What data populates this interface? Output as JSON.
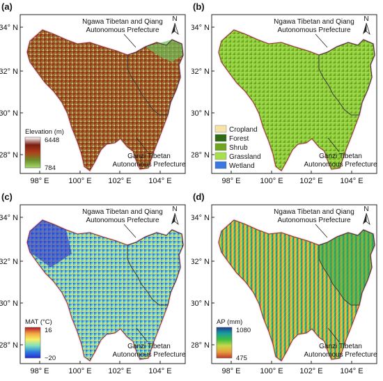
{
  "figure": {
    "panels": [
      {
        "label": "(a)",
        "y_ticks": [
          "34° N",
          "32° N",
          "30° N",
          "28° N"
        ],
        "x_ticks": [
          "98° E",
          "100° E",
          "102° E",
          "104° E"
        ],
        "north": "N",
        "annotation_ngawa": [
          "Ngawa Tibetan and Qiang",
          "Autonomous Prefecture"
        ],
        "annotation_ganzi": [
          "Ganzi Tibetan",
          "Autonomous Prefecture"
        ],
        "legend": {
          "title": "Elevation (m)",
          "max": "6448",
          "min": "784",
          "colors": [
            "#ffffff",
            "#7a1e10",
            "#b0401b",
            "#6b8f2a",
            "#a6d96a"
          ]
        }
      },
      {
        "label": "(b)",
        "y_ticks": [
          "34° N",
          "32° N",
          "30° N",
          "28° N"
        ],
        "x_ticks": [
          "98° E",
          "100° E",
          "102° E",
          "104° E"
        ],
        "north": "N",
        "annotation_ngawa": [
          "Ngawa Tibetan and Qiang",
          "Autonomous Prefecture"
        ],
        "annotation_ganzi": [
          "Ganzi Tibetan",
          "Autonomous Prefecture"
        ],
        "legend_items": [
          {
            "label": "Cropland",
            "color": "#f7e3a8"
          },
          {
            "label": "Forest",
            "color": "#2e6b12"
          },
          {
            "label": "Shrub",
            "color": "#6fa51f"
          },
          {
            "label": "Grassland",
            "color": "#a8e04a"
          },
          {
            "label": "Wetland",
            "color": "#3a78e0"
          }
        ]
      },
      {
        "label": "(c)",
        "y_ticks": [
          "34° N",
          "32° N",
          "30° N",
          "28° N"
        ],
        "x_ticks": [
          "98° E",
          "100° E",
          "102° E",
          "104° E"
        ],
        "north": "N",
        "annotation_ngawa": [
          "Ngawa Tibetan and Qiang",
          "Autonomous Prefecture"
        ],
        "annotation_ganzi": [
          "Ganzi Tibetan",
          "Autonomous Prefecture"
        ],
        "legend": {
          "title": "MAT (°C)",
          "max": "16",
          "min": "−20",
          "colors": [
            "#b2182b",
            "#f4a442",
            "#f7f066",
            "#7fe0c0",
            "#2c7fe0",
            "#2a2ad0"
          ]
        }
      },
      {
        "label": "(d)",
        "y_ticks": [
          "34° N",
          "32° N",
          "30° N",
          "28° N"
        ],
        "x_ticks": [
          "98° E",
          "100° E",
          "102° E",
          "104° E"
        ],
        "north": "N",
        "annotation_ngawa": [
          "Ngawa Tibetan and Qiang",
          "Autonomous Prefecture"
        ],
        "annotation_ganzi": [
          "Ganzi Tibetan",
          "Autonomous Prefecture"
        ],
        "legend": {
          "title": "AP (mm)",
          "max": "1080",
          "min": "475",
          "colors": [
            "#1e3d8f",
            "#1a9e9e",
            "#3fbf3f",
            "#c9d84a",
            "#e7a03c",
            "#c0392b"
          ]
        }
      }
    ]
  }
}
